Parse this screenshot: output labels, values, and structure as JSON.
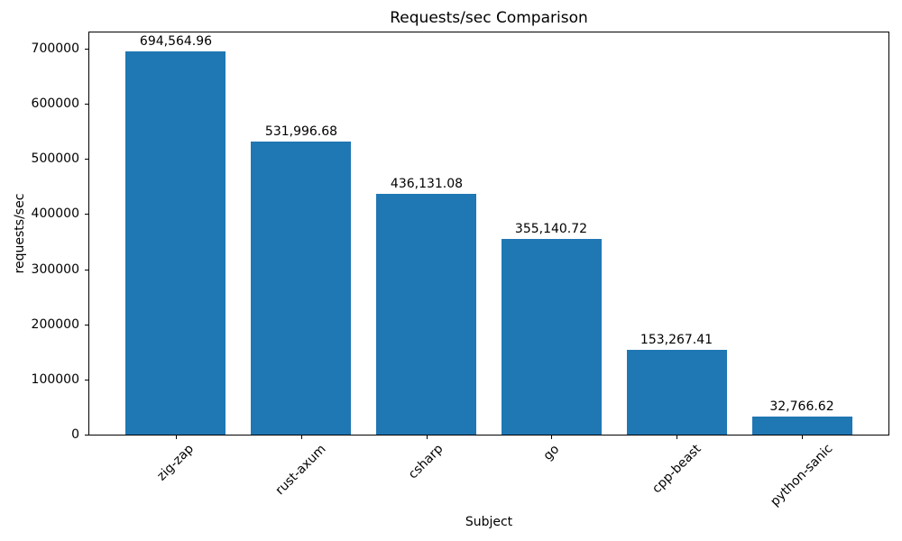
{
  "chart_data": {
    "type": "bar",
    "title": "Requests/sec Comparison",
    "xlabel": "Subject",
    "ylabel": "requests/sec",
    "categories": [
      "zig-zap",
      "rust-axum",
      "csharp",
      "go",
      "cpp-beast",
      "python-sanic"
    ],
    "values": [
      694564.96,
      531996.68,
      436131.08,
      355140.72,
      153267.41,
      32766.62
    ],
    "bar_labels": [
      "694,564.96",
      "531,996.68",
      "436,131.08",
      "355,140.72",
      "153,267.41",
      "32,766.62"
    ],
    "yticks": [
      0,
      100000,
      200000,
      300000,
      400000,
      500000,
      600000,
      700000
    ],
    "ylim": [
      0,
      729293
    ],
    "bar_color": "#1f77b4",
    "bar_width_fraction": 0.8,
    "grid": false,
    "legend": null,
    "xtick_rotation_deg": 45
  }
}
